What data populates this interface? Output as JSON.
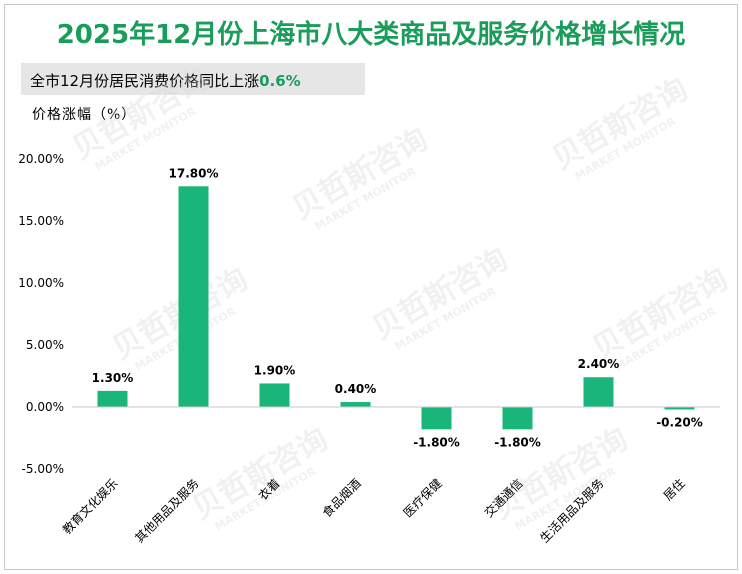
{
  "header": {
    "title": "2025年12月份上海市八大类商品及服务价格增长情况",
    "subtitle_prefix": "全市12月份居民消费价格同比上涨",
    "subtitle_value": "0.6%",
    "unit_label": "价格涨幅（%）"
  },
  "watermark": {
    "text_cn": "贝哲斯咨询",
    "text_en": "MARKET MONITOR"
  },
  "chart_data": {
    "type": "bar",
    "title": "2025年12月份上海市八大类商品及服务价格增长情况",
    "ylabel": "价格涨幅（%）",
    "xlabel": "",
    "categories": [
      "教育文化娱乐",
      "其他用品及服务",
      "衣着",
      "食品烟酒",
      "医疗保健",
      "交通通信",
      "生活用品及服务",
      "居住"
    ],
    "values": [
      1.3,
      17.8,
      1.9,
      0.4,
      -1.8,
      -1.8,
      2.4,
      -0.2
    ],
    "data_labels": [
      "1.30%",
      "17.80%",
      "1.90%",
      "0.40%",
      "-1.80%",
      "-1.80%",
      "2.40%",
      "-0.20%"
    ],
    "ylim": [
      -5,
      20
    ],
    "yticks": [
      20,
      15,
      10,
      5,
      0,
      -5
    ],
    "ytick_labels": [
      "20.00%",
      "15.00%",
      "10.00%",
      "5.00%",
      "0.00%",
      "-5.00%"
    ],
    "grid": false,
    "bar_color": "#1ab57a"
  }
}
